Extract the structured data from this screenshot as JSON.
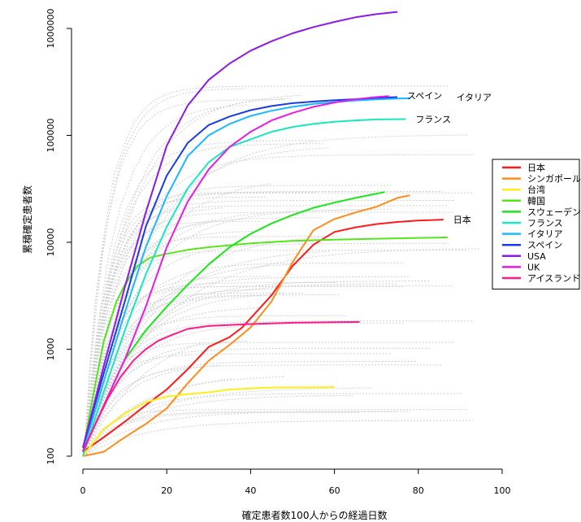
{
  "chart_data": {
    "type": "line",
    "title": "",
    "xlabel": "確定患者数100人からの経過日数",
    "ylabel": "累積確定患者数",
    "xlim": [
      0,
      100
    ],
    "ylim": [
      100,
      1500000
    ],
    "yscale": "log",
    "grid": false,
    "legend_position": "right",
    "x_ticks": [
      {
        "value": 0,
        "label": "0"
      },
      {
        "value": 20,
        "label": "20"
      },
      {
        "value": 40,
        "label": "40"
      },
      {
        "value": 60,
        "label": "60"
      },
      {
        "value": 80,
        "label": "80"
      },
      {
        "value": 100,
        "label": "100"
      }
    ],
    "y_ticks": [
      {
        "value": 100,
        "label": "100"
      },
      {
        "value": 1000,
        "label": "1000"
      },
      {
        "value": 10000,
        "label": "10000"
      },
      {
        "value": 100000,
        "label": "100000"
      },
      {
        "value": 1000000,
        "label": "1000000"
      }
    ],
    "series": [
      {
        "name": "日本",
        "color": "#ff1a1a",
        "label": "日本",
        "points": [
          [
            0,
            110
          ],
          [
            5,
            150
          ],
          [
            10,
            210
          ],
          [
            15,
            300
          ],
          [
            20,
            420
          ],
          [
            25,
            650
          ],
          [
            30,
            1050
          ],
          [
            35,
            1300
          ],
          [
            38,
            1600
          ],
          [
            40,
            1950
          ],
          [
            45,
            3200
          ],
          [
            50,
            6000
          ],
          [
            55,
            9500
          ],
          [
            60,
            12500
          ],
          [
            65,
            13800
          ],
          [
            70,
            14800
          ],
          [
            75,
            15500
          ],
          [
            80,
            16000
          ],
          [
            86,
            16300
          ]
        ]
      },
      {
        "name": "シンガポール",
        "color": "#ff8c1a",
        "label": "",
        "points": [
          [
            0,
            100
          ],
          [
            5,
            110
          ],
          [
            10,
            150
          ],
          [
            15,
            200
          ],
          [
            20,
            280
          ],
          [
            25,
            480
          ],
          [
            30,
            780
          ],
          [
            35,
            1100
          ],
          [
            40,
            1600
          ],
          [
            45,
            2800
          ],
          [
            50,
            6500
          ],
          [
            55,
            13000
          ],
          [
            60,
            16500
          ],
          [
            65,
            19000
          ],
          [
            70,
            21500
          ],
          [
            75,
            26000
          ],
          [
            78,
            27500
          ]
        ]
      },
      {
        "name": "台湾",
        "color": "#ffee1a",
        "label": "",
        "points": [
          [
            0,
            100
          ],
          [
            5,
            180
          ],
          [
            10,
            250
          ],
          [
            15,
            320
          ],
          [
            20,
            360
          ],
          [
            25,
            380
          ],
          [
            30,
            395
          ],
          [
            35,
            420
          ],
          [
            40,
            430
          ],
          [
            45,
            438
          ],
          [
            50,
            440
          ],
          [
            55,
            440
          ],
          [
            60,
            442
          ]
        ]
      },
      {
        "name": "韓国",
        "color": "#55e61a",
        "label": "",
        "points": [
          [
            0,
            110
          ],
          [
            2,
            300
          ],
          [
            5,
            1200
          ],
          [
            8,
            2800
          ],
          [
            10,
            4000
          ],
          [
            13,
            6000
          ],
          [
            16,
            7200
          ],
          [
            20,
            7800
          ],
          [
            25,
            8500
          ],
          [
            30,
            9000
          ],
          [
            40,
            9800
          ],
          [
            50,
            10300
          ],
          [
            60,
            10600
          ],
          [
            70,
            10800
          ],
          [
            80,
            11000
          ],
          [
            87,
            11100
          ]
        ]
      },
      {
        "name": "スウェーデン",
        "color": "#1ae61a",
        "label": "",
        "points": [
          [
            0,
            110
          ],
          [
            5,
            300
          ],
          [
            10,
            800
          ],
          [
            15,
            1500
          ],
          [
            20,
            2500
          ],
          [
            25,
            4000
          ],
          [
            30,
            6200
          ],
          [
            35,
            9000
          ],
          [
            40,
            12000
          ],
          [
            45,
            15000
          ],
          [
            50,
            18000
          ],
          [
            55,
            21000
          ],
          [
            60,
            23500
          ],
          [
            65,
            26000
          ],
          [
            72,
            29500
          ]
        ]
      },
      {
        "name": "フランス",
        "color": "#1ae6c0",
        "label": "フランス",
        "points": [
          [
            0,
            100
          ],
          [
            5,
            400
          ],
          [
            10,
            1500
          ],
          [
            15,
            5000
          ],
          [
            20,
            14000
          ],
          [
            25,
            32000
          ],
          [
            30,
            56000
          ],
          [
            35,
            78000
          ],
          [
            40,
            92000
          ],
          [
            45,
            108000
          ],
          [
            50,
            120000
          ],
          [
            55,
            128000
          ],
          [
            60,
            134000
          ],
          [
            65,
            138000
          ],
          [
            70,
            141000
          ],
          [
            77,
            142000
          ]
        ]
      },
      {
        "name": "イタリア",
        "color": "#1ab8ff",
        "label": "イタリア",
        "points": [
          [
            0,
            110
          ],
          [
            5,
            500
          ],
          [
            10,
            2200
          ],
          [
            15,
            9000
          ],
          [
            20,
            27000
          ],
          [
            25,
            64000
          ],
          [
            30,
            100000
          ],
          [
            35,
            128000
          ],
          [
            40,
            152000
          ],
          [
            45,
            170000
          ],
          [
            50,
            185000
          ],
          [
            55,
            197000
          ],
          [
            60,
            205000
          ],
          [
            65,
            212000
          ],
          [
            70,
            217000
          ],
          [
            75,
            221000
          ],
          [
            78,
            223000
          ]
        ]
      },
      {
        "name": "スペイン",
        "color": "#1a3ce6",
        "label": "スペイン",
        "points": [
          [
            0,
            120
          ],
          [
            5,
            600
          ],
          [
            10,
            2800
          ],
          [
            15,
            14000
          ],
          [
            20,
            42000
          ],
          [
            25,
            85000
          ],
          [
            30,
            125000
          ],
          [
            35,
            150000
          ],
          [
            40,
            172000
          ],
          [
            45,
            188000
          ],
          [
            50,
            200000
          ],
          [
            55,
            207000
          ],
          [
            60,
            213000
          ],
          [
            65,
            218000
          ],
          [
            70,
            224000
          ],
          [
            75,
            228000
          ]
        ]
      },
      {
        "name": "USA",
        "color": "#8c1ae6",
        "label": "",
        "points": [
          [
            0,
            120
          ],
          [
            5,
            700
          ],
          [
            10,
            3800
          ],
          [
            15,
            19000
          ],
          [
            20,
            80000
          ],
          [
            25,
            190000
          ],
          [
            30,
            330000
          ],
          [
            35,
            470000
          ],
          [
            40,
            620000
          ],
          [
            45,
            760000
          ],
          [
            50,
            900000
          ],
          [
            55,
            1030000
          ],
          [
            60,
            1150000
          ],
          [
            65,
            1270000
          ],
          [
            70,
            1360000
          ],
          [
            75,
            1430000
          ]
        ]
      },
      {
        "name": "UK",
        "color": "#e61ae6",
        "label": "",
        "points": [
          [
            0,
            110
          ],
          [
            5,
            300
          ],
          [
            10,
            800
          ],
          [
            15,
            2500
          ],
          [
            20,
            9000
          ],
          [
            25,
            24000
          ],
          [
            30,
            48000
          ],
          [
            35,
            78000
          ],
          [
            40,
            108000
          ],
          [
            45,
            138000
          ],
          [
            50,
            162000
          ],
          [
            55,
            185000
          ],
          [
            60,
            203000
          ],
          [
            65,
            218000
          ],
          [
            70,
            228000
          ],
          [
            73,
            233000
          ]
        ]
      },
      {
        "name": "アイスランド",
        "color": "#ff1a8c",
        "label": "",
        "points": [
          [
            0,
            110
          ],
          [
            3,
            200
          ],
          [
            6,
            350
          ],
          [
            9,
            550
          ],
          [
            12,
            780
          ],
          [
            15,
            1000
          ],
          [
            18,
            1200
          ],
          [
            21,
            1350
          ],
          [
            25,
            1550
          ],
          [
            30,
            1650
          ],
          [
            40,
            1720
          ],
          [
            50,
            1770
          ],
          [
            60,
            1790
          ],
          [
            66,
            1800
          ]
        ]
      }
    ]
  }
}
